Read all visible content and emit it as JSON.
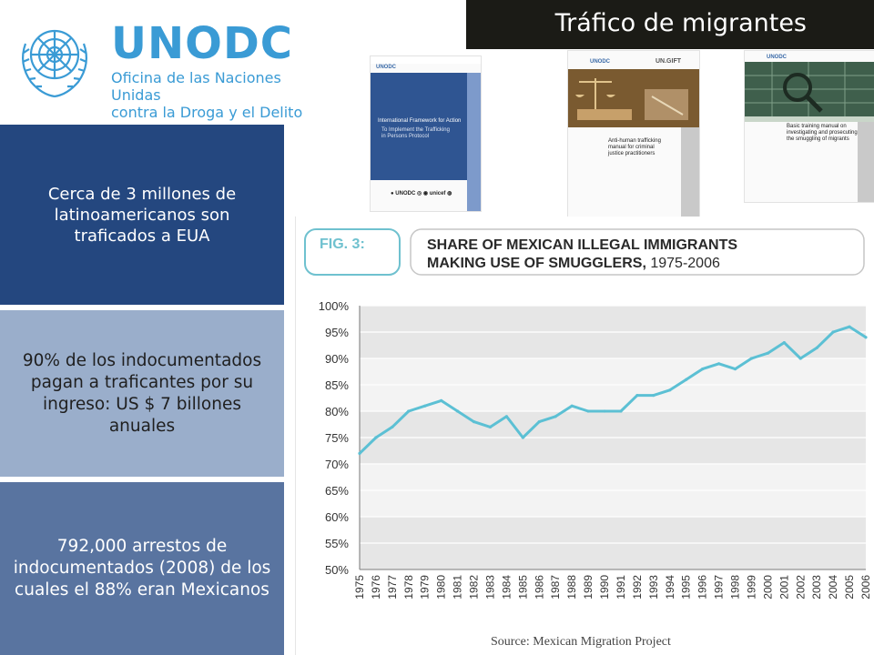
{
  "header": {
    "title": "Tráfico de migrantes"
  },
  "logo": {
    "wordmark": "UNODC",
    "subtitle_line1": "Oficina de las Naciones Unidas",
    "subtitle_line2": "contra la Droga y el Delito"
  },
  "covers": [
    {
      "brand": "UNODC",
      "title_line1": "International Framework for Action",
      "title_line2": "To Implement the Trafficking",
      "title_line3": "in Persons Protocol"
    },
    {
      "brand": "UNODC",
      "brand2": "UN.GIFT",
      "title_line1": "Anti-human trafficking",
      "title_line2": "manual for criminal",
      "title_line3": "justice practitioners"
    },
    {
      "brand": "UNODC",
      "title_line1": "Basic training manual on",
      "title_line2": "investigating and prosecuting",
      "title_line3": "the smuggling of migrants"
    }
  ],
  "info_boxes": [
    {
      "text": "Cerca de 3 millones de latinoamericanos son traficados  a EUA"
    },
    {
      "text": "90% de los indocumentados  pagan a traficantes por su ingreso: US $ 7 billones anuales"
    },
    {
      "text": "792,000 arrestos  de indocumentados (2008) de los cuales el 88% eran Mexicanos"
    }
  ],
  "colors": {
    "title_bar": "#1b1b16",
    "logo_blue": "#3a9bd5",
    "box1": "#24477f",
    "box2": "#9aaecb",
    "box3": "#5974a0",
    "line": "#5cc0d4",
    "label_frame": "#6fc1cf"
  },
  "chart_data": {
    "type": "line",
    "fig_label": "FIG. 3:",
    "title_bold": "SHARE OF MEXICAN ILLEGAL IMMIGRANTS MAKING USE OF SMUGGLERS,",
    "title_line1": "SHARE OF MEXICAN ILLEGAL IMMIGRANTS",
    "title_line2_bold": "MAKING USE OF SMUGGLERS,",
    "title_line2_rest": " 1975-2006",
    "source": "Source: Mexican Migration Project",
    "ylim": [
      50,
      100
    ],
    "y_ticks": [
      "50%",
      "55%",
      "60%",
      "65%",
      "70%",
      "75%",
      "80%",
      "85%",
      "90%",
      "95%",
      "100%"
    ],
    "y_tick_values": [
      50,
      55,
      60,
      65,
      70,
      75,
      80,
      85,
      90,
      95,
      100
    ],
    "grid": true,
    "x": [
      "1975",
      "1976",
      "1977",
      "1978",
      "1979",
      "1980",
      "1981",
      "1982",
      "1983",
      "1984",
      "1985",
      "1986",
      "1987",
      "1988",
      "1989",
      "1990",
      "1991",
      "1992",
      "1993",
      "1994",
      "1995",
      "1996",
      "1997",
      "1998",
      "1999",
      "2000",
      "2001",
      "2002",
      "2003",
      "2004",
      "2005",
      "2006"
    ],
    "series": [
      {
        "values": [
          72,
          75,
          77,
          80,
          81,
          82,
          80,
          78,
          77,
          79,
          75,
          78,
          79,
          81,
          80,
          80,
          80,
          83,
          83,
          84,
          86,
          88,
          89,
          88,
          90,
          91,
          93,
          90,
          92,
          95,
          96,
          94
        ]
      }
    ]
  }
}
